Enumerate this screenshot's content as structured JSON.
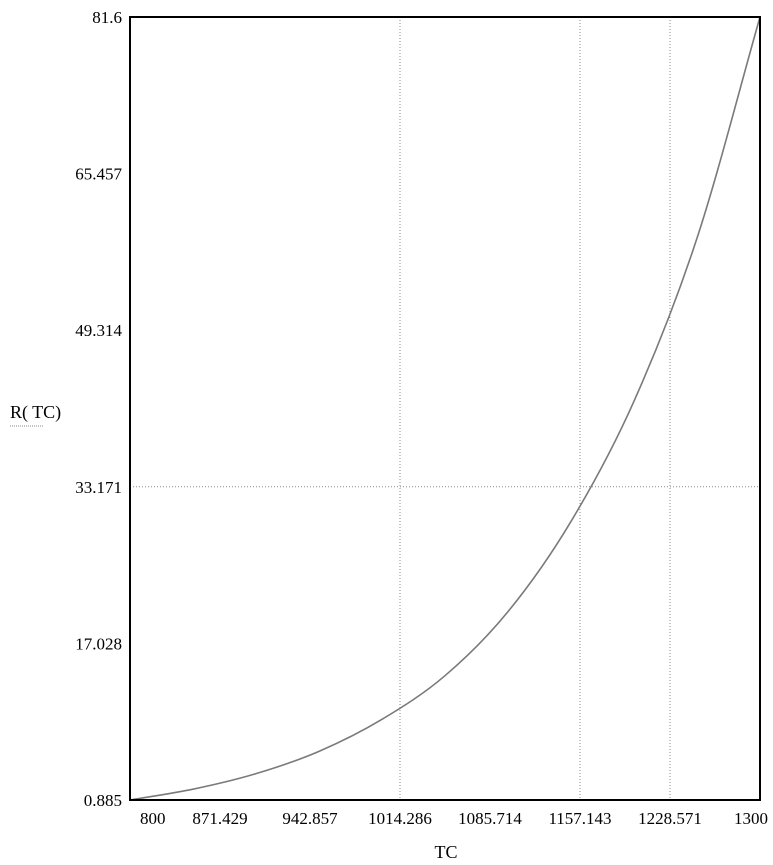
{
  "chart_data": {
    "type": "line",
    "title": "",
    "xlabel": "TC",
    "ylabel": "R( TC)",
    "xlim": [
      800,
      1300
    ],
    "ylim": [
      0.885,
      81.6
    ],
    "xticks": [
      "800",
      "871.429",
      "942.857",
      "1014.286",
      "1085.714",
      "1157.143",
      "1228.571",
      "1300"
    ],
    "yticks": [
      "0.885",
      "17.028",
      "33.171",
      "49.314",
      "65.457",
      "81.6"
    ],
    "grid": false,
    "legend": "none",
    "colors": {
      "curve": "#7a7a7a",
      "reference": "#8a8a8a",
      "frame": "#000000"
    },
    "series": [
      {
        "x": [
          800,
          850,
          900,
          950,
          1000,
          1050,
          1100,
          1150,
          1200,
          1250,
          1300
        ],
        "y": [
          0.885,
          2.0,
          3.6,
          5.9,
          9.2,
          13.7,
          20.3,
          29.6,
          42.0,
          58.8,
          81.6
        ]
      }
    ],
    "reference_lines": {
      "vertical_x": [
        1014.286,
        1157.143,
        1228.571
      ],
      "horizontal_y": [
        33.171
      ]
    }
  }
}
